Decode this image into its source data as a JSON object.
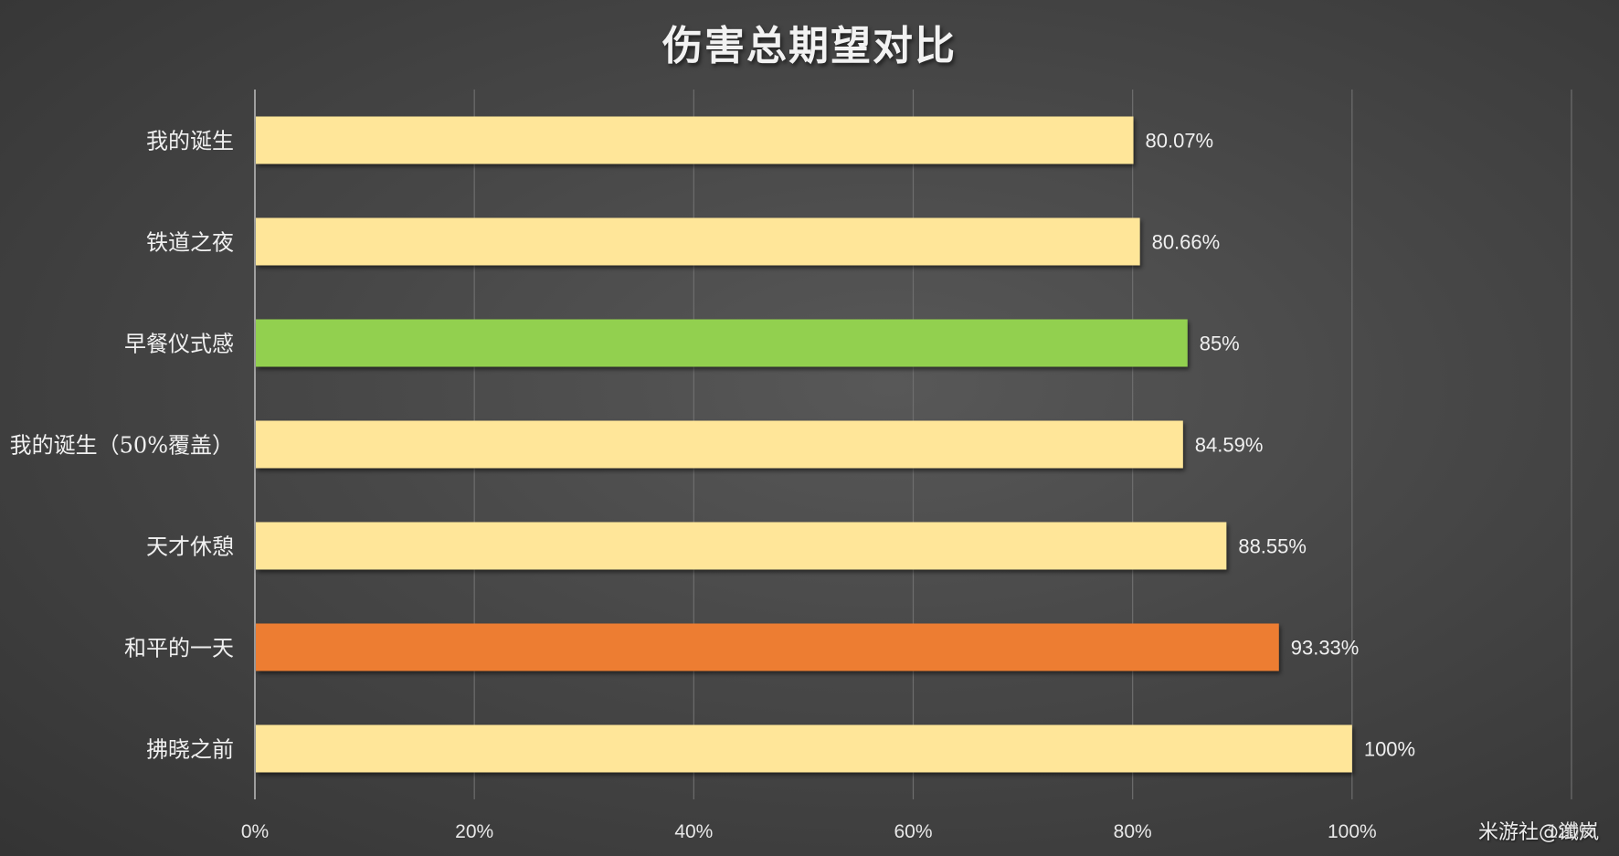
{
  "chart_data": {
    "type": "bar",
    "orientation": "horizontal",
    "title": "伤害总期望对比",
    "categories": [
      "我的诞生",
      "铁道之夜",
      "早餐仪式感",
      "我的诞生（50%覆盖）",
      "天才休憩",
      "和平的一天",
      "拂晓之前"
    ],
    "values": [
      80.07,
      80.66,
      85,
      84.59,
      88.55,
      93.33,
      100
    ],
    "data_labels": [
      "80.07%",
      "80.66%",
      "85%",
      "84.59%",
      "88.55%",
      "93.33%",
      "100%"
    ],
    "bar_colors": [
      "#ffe699",
      "#ffe699",
      "#92d050",
      "#ffe699",
      "#ffe699",
      "#ed7d31",
      "#ffe699"
    ],
    "xlim": [
      0,
      120
    ],
    "x_ticks": [
      0,
      20,
      40,
      60,
      80,
      100,
      120
    ],
    "x_tick_labels": [
      "0%",
      "20%",
      "40%",
      "60%",
      "80%",
      "100%",
      "120%"
    ],
    "grid": true,
    "legend": "none"
  },
  "watermark": "米游社@谶岚",
  "colors": {
    "background": "#474747",
    "grid": "#6e6e6e",
    "axis": "#bfbfbf",
    "text": "#f0f0f0"
  }
}
